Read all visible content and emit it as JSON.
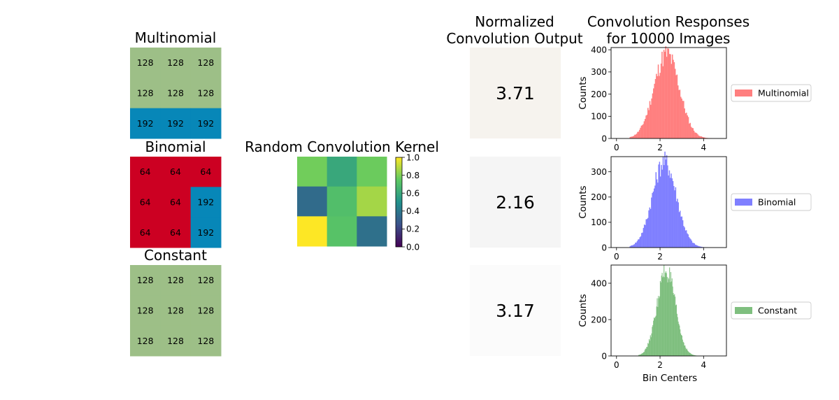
{
  "chart_data": [
    {
      "type": "heatmap",
      "title": "Multinomial",
      "values": [
        [
          128,
          128,
          128
        ],
        [
          128,
          128,
          128
        ],
        [
          192,
          192,
          192
        ]
      ],
      "colors": [
        [
          "#9dbf87",
          "#9dbf87",
          "#9dbf87"
        ],
        [
          "#9dbf87",
          "#9dbf87",
          "#9dbf87"
        ],
        [
          "#0787b8",
          "#0787b8",
          "#0787b8"
        ]
      ]
    },
    {
      "type": "heatmap",
      "title": "Binomial",
      "values": [
        [
          64,
          64,
          64
        ],
        [
          64,
          64,
          192
        ],
        [
          64,
          64,
          192
        ]
      ],
      "colors": [
        [
          "#cc0022",
          "#cc0022",
          "#cc0022"
        ],
        [
          "#cc0022",
          "#cc0022",
          "#0787b8"
        ],
        [
          "#cc0022",
          "#cc0022",
          "#0787b8"
        ]
      ]
    },
    {
      "type": "heatmap",
      "title": "Constant",
      "values": [
        [
          128,
          128,
          128
        ],
        [
          128,
          128,
          128
        ],
        [
          128,
          128,
          128
        ]
      ],
      "colors": [
        [
          "#9dbf87",
          "#9dbf87",
          "#9dbf87"
        ],
        [
          "#9dbf87",
          "#9dbf87",
          "#9dbf87"
        ],
        [
          "#9dbf87",
          "#9dbf87",
          "#9dbf87"
        ]
      ]
    },
    {
      "type": "heatmap",
      "title": "Random Convolution Kernel",
      "values": [
        [
          0.78,
          0.6,
          0.77
        ],
        [
          0.35,
          0.7,
          0.86
        ],
        [
          1.0,
          0.72,
          0.37
        ]
      ],
      "colormap": "viridis",
      "colorbar": {
        "range": [
          0.0,
          1.0
        ],
        "ticks": [
          "0.0",
          "0.2",
          "0.4",
          "0.6",
          "0.8",
          "1.0"
        ]
      }
    },
    {
      "type": "table",
      "title_lines": [
        "Normalized",
        "Convolution Output"
      ],
      "values": [
        "3.71",
        "2.16",
        "3.17"
      ],
      "background_colors": [
        "#f6f3ee",
        "#f5f5f5",
        "#fbfbfb"
      ]
    },
    {
      "type": "bar",
      "title_lines": [
        "Convolution Responses",
        "for 10000 Images"
      ],
      "xlabel": "Bin Centers",
      "ylabel": "Counts",
      "xlim": [
        -0.25,
        5.05
      ],
      "x_ticks": [
        "0",
        "2",
        "4"
      ],
      "legend_placement": "right",
      "panels": [
        {
          "series": [
            {
              "name": "Multinomial",
              "color": "#ff7f7f",
              "mean": 2.3,
              "sd": 0.58,
              "range": [
                0.6,
                4.7
              ],
              "peak": 385
            }
          ],
          "ylim": [
            0,
            410
          ],
          "y_ticks": [
            "0",
            "100",
            "200",
            "300",
            "400"
          ]
        },
        {
          "series": [
            {
              "name": "Binomial",
              "color": "#7f7fff",
              "mean": 2.2,
              "sd": 0.55,
              "range": [
                0.6,
                4.5
              ],
              "peak": 345
            }
          ],
          "ylim": [
            0,
            360
          ],
          "y_ticks": [
            "0",
            "100",
            "200",
            "300"
          ]
        },
        {
          "series": [
            {
              "name": "Constant",
              "color": "#7fbf7f",
              "mean": 2.28,
              "sd": 0.42,
              "range": [
                1.0,
                3.7
              ],
              "peak": 470
            }
          ],
          "ylim": [
            0,
            500
          ],
          "y_ticks": [
            "0",
            "200",
            "400"
          ]
        }
      ]
    }
  ]
}
